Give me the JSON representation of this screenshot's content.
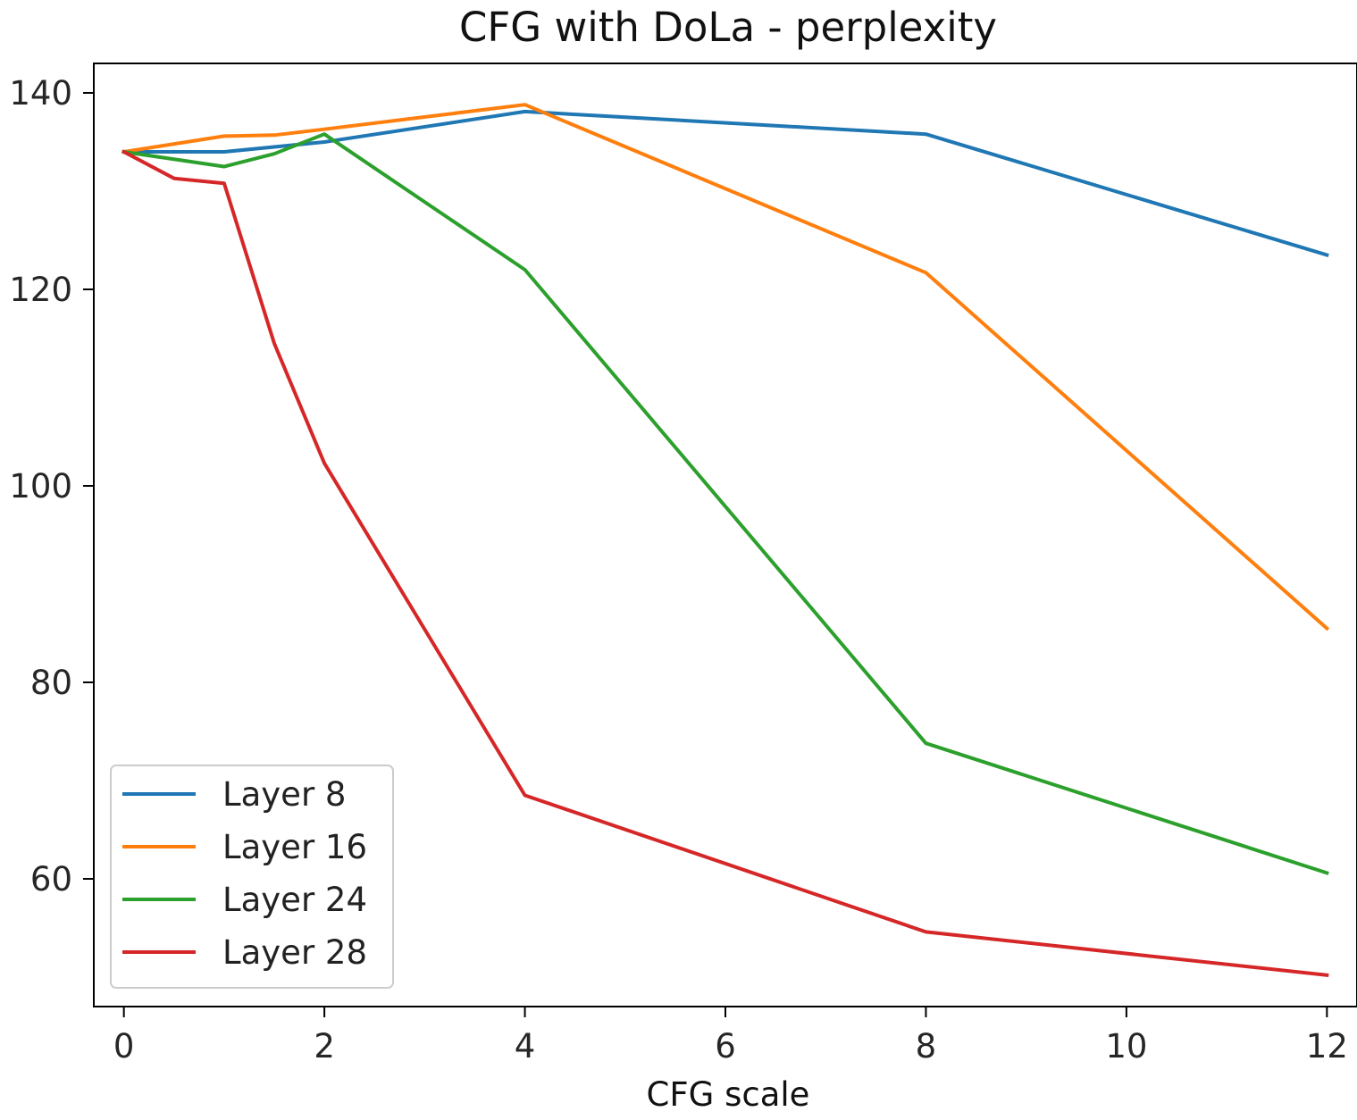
{
  "chart_data": {
    "type": "line",
    "title": "CFG with DoLa - perplexity",
    "xlabel": "CFG scale",
    "ylabel": "",
    "xlim": [
      -0.3,
      12.3
    ],
    "ylim": [
      47,
      143
    ],
    "xticks": [
      0,
      2,
      4,
      6,
      8,
      10,
      12
    ],
    "yticks": [
      60,
      80,
      100,
      120,
      140
    ],
    "grid": false,
    "legend_position": "lower-left",
    "series": [
      {
        "name": "Layer 8",
        "color": "#1f77b4",
        "x": [
          0,
          1,
          2,
          4,
          8,
          12
        ],
        "y": [
          134.0,
          134.0,
          135.0,
          138.1,
          135.8,
          123.5
        ]
      },
      {
        "name": "Layer 16",
        "color": "#ff7f0e",
        "x": [
          0,
          1,
          1.5,
          2,
          4,
          8,
          12
        ],
        "y": [
          134.0,
          135.6,
          135.7,
          136.3,
          138.8,
          121.7,
          85.5
        ]
      },
      {
        "name": "Layer 24",
        "color": "#2ca02c",
        "x": [
          0,
          1,
          1.5,
          2,
          4,
          8,
          12
        ],
        "y": [
          134.0,
          132.5,
          133.8,
          135.8,
          122.0,
          73.8,
          60.6
        ]
      },
      {
        "name": "Layer 28",
        "color": "#d62728",
        "x": [
          0,
          0.5,
          1,
          1.5,
          2,
          4,
          8,
          12
        ],
        "y": [
          134.0,
          131.3,
          130.8,
          114.5,
          102.3,
          68.5,
          54.6,
          50.2
        ]
      }
    ]
  }
}
